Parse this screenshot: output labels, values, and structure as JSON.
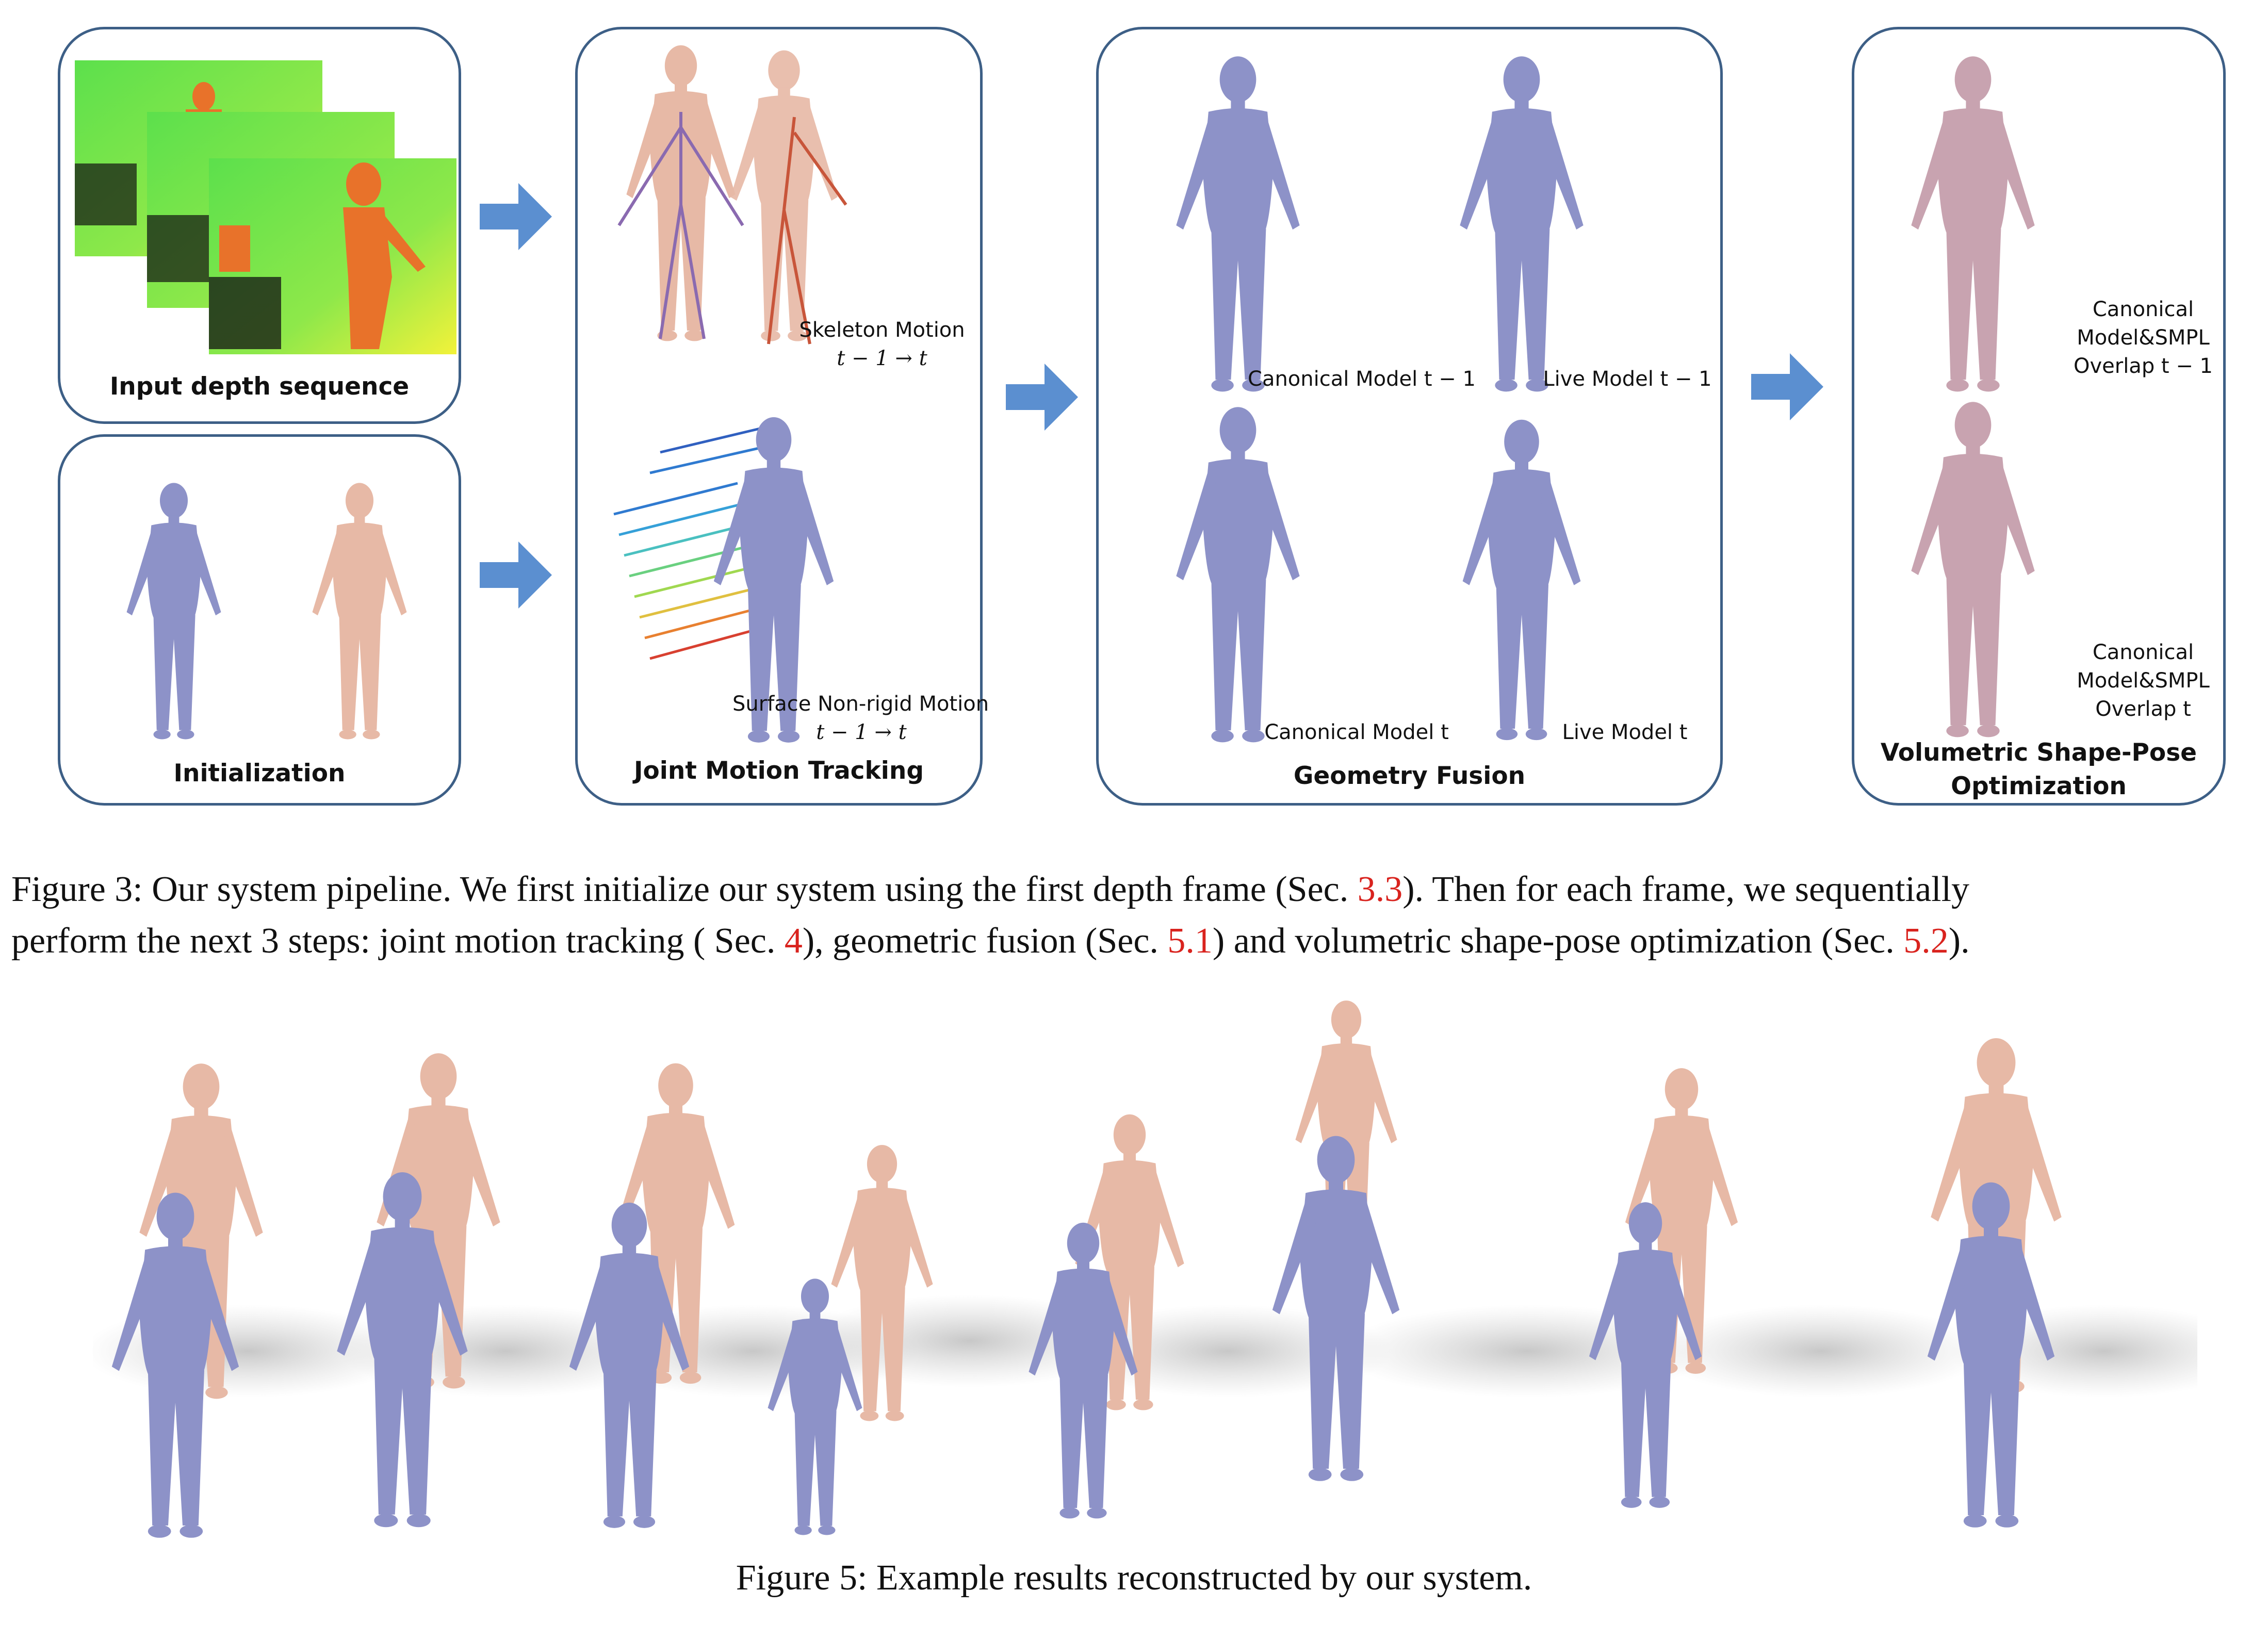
{
  "colors": {
    "panel_border": "#3d5f86",
    "arrow": "#5b8fd0",
    "mesh_blue": "#8d92c8",
    "skin": "#e7b9a6",
    "reference": "#d9231e",
    "depth_green": "#5ce04c",
    "depth_yellow": "#f2f23a",
    "depth_orange": "#e8722a"
  },
  "panels": {
    "input_depth": {
      "title": "Input depth sequence"
    },
    "initialization": {
      "title": "Initialization"
    },
    "joint_motion": {
      "title": "Joint Motion Tracking",
      "skeleton_label": "Skeleton Motion",
      "skeleton_math": "t − 1  → t",
      "surface_label": "Surface Non-rigid Motion",
      "surface_math": "t − 1  → t"
    },
    "geometry_fusion": {
      "title": "Geometry Fusion",
      "canonical_prev": "Canonical Model t − 1",
      "live_prev": "Live Model t − 1",
      "canonical_cur": "Canonical Model t",
      "live_cur": "Live Model t"
    },
    "optimization": {
      "title_line1": "Volumetric Shape-Pose",
      "title_line2": "Optimization",
      "top_label_1": "Canonical",
      "top_label_2": "Model&SMPL",
      "top_label_3": "Overlap t − 1",
      "bottom_label_1": "Canonical",
      "bottom_label_2": "Model&SMPL",
      "bottom_label_3": "Overlap t"
    }
  },
  "icons": [
    "right-arrow-icon",
    "human-mesh-icon",
    "depth-frame-icon",
    "motion-trails-icon"
  ],
  "figure3_caption": {
    "line1_pre": "Figure 3: Our system pipeline.  We first initialize our system using the first depth frame (Sec. ",
    "line1_ref": "3.3",
    "line1_post": ").  Then for each frame, we sequentially",
    "line2_a": "perform the next 3 steps: joint motion tracking ( Sec. ",
    "line2_ref1": "4",
    "line2_b": "), geometric fusion (Sec. ",
    "line2_ref2": "5.1",
    "line2_c": ") and volumetric shape-pose optimization (Sec. ",
    "line2_ref3": "5.2",
    "line2_d": ")."
  },
  "figure5_caption": "Figure 5: Example results reconstructed by our system."
}
